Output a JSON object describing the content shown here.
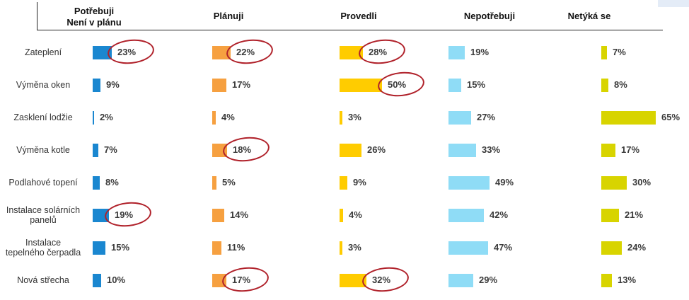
{
  "chart_data": {
    "type": "bar",
    "categories": [
      "Zateplení",
      "Výměna oken",
      "Zasklení lodžie",
      "Výměna kotle",
      "Podlahové topení",
      "Instalace solárních panelů",
      "Instalace tepelného čerpadla",
      "Nová střecha"
    ],
    "category_lines": [
      [
        "Zateplení"
      ],
      [
        "Výměna oken"
      ],
      [
        "Zasklení lodžie"
      ],
      [
        "Výměna kotle"
      ],
      [
        "Podlahové topení"
      ],
      [
        "Instalace solárních",
        "panelů"
      ],
      [
        "Instalace",
        "tepelného čerpadla"
      ],
      [
        "Nová střecha"
      ]
    ],
    "series": [
      {
        "name": "Potřebuji Není v plánu",
        "name_lines": [
          "Potřebuji",
          "Není v plánu"
        ],
        "color": "#1a87d0",
        "values": [
          23,
          9,
          2,
          7,
          8,
          19,
          15,
          10
        ],
        "circled": [
          true,
          false,
          false,
          false,
          false,
          true,
          false,
          false
        ]
      },
      {
        "name": "Plánuji",
        "name_lines": [
          "Plánuji"
        ],
        "color": "#f6a040",
        "values": [
          22,
          17,
          4,
          18,
          5,
          14,
          11,
          17
        ],
        "circled": [
          true,
          false,
          false,
          true,
          false,
          false,
          false,
          true
        ]
      },
      {
        "name": "Provedli",
        "name_lines": [
          "Provedli"
        ],
        "color": "#ffcc00",
        "values": [
          28,
          50,
          3,
          26,
          9,
          4,
          3,
          32
        ],
        "circled": [
          true,
          true,
          false,
          false,
          false,
          false,
          false,
          true
        ]
      },
      {
        "name": "Nepotřebuji",
        "name_lines": [
          "Nepotřebuji"
        ],
        "color": "#8fdcf6",
        "values": [
          19,
          15,
          27,
          33,
          49,
          42,
          47,
          29
        ],
        "circled": [
          false,
          false,
          false,
          false,
          false,
          false,
          false,
          false
        ]
      },
      {
        "name": "Netýká se",
        "name_lines": [
          "Netýká se"
        ],
        "color": "#d8d400",
        "values": [
          7,
          8,
          65,
          17,
          30,
          21,
          24,
          13
        ],
        "circled": [
          false,
          false,
          false,
          false,
          false,
          false,
          false,
          false
        ]
      }
    ],
    "value_suffix": "%",
    "annotation_color": "#b0212a",
    "grid": false,
    "legend": "top"
  }
}
